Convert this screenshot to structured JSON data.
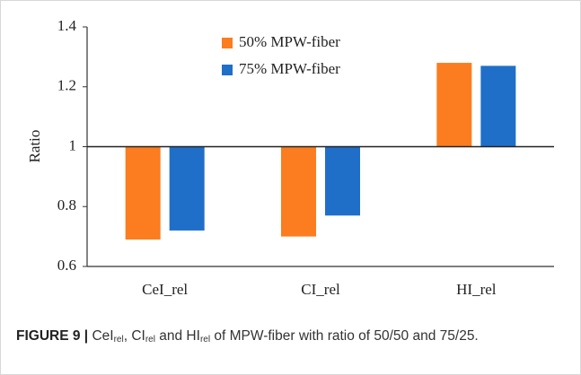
{
  "chart_data": {
    "type": "bar",
    "y_label": "Ratio",
    "categories": [
      "CeI_rel",
      "CI_rel",
      "HI_rel"
    ],
    "series": [
      {
        "name": "50% MPW-fiber",
        "color": "#fb7d1f",
        "values": [
          0.69,
          0.7,
          1.28
        ]
      },
      {
        "name": "75% MPW-fiber",
        "color": "#1f6fc9",
        "values": [
          0.72,
          0.77,
          1.27
        ]
      }
    ],
    "baseline": 1,
    "ylim": [
      0.6,
      1.4
    ],
    "yticks": [
      0.6,
      0.8,
      1,
      1.2,
      1.4
    ],
    "grid": false,
    "legend": "top"
  },
  "caption": {
    "label": "FIGURE 9 |",
    "segments": [
      "CeI",
      "rel",
      ", CI",
      "rel",
      " and HI",
      "rel",
      " of MPW-fiber with ratio of 50/50 and 75/25."
    ]
  }
}
